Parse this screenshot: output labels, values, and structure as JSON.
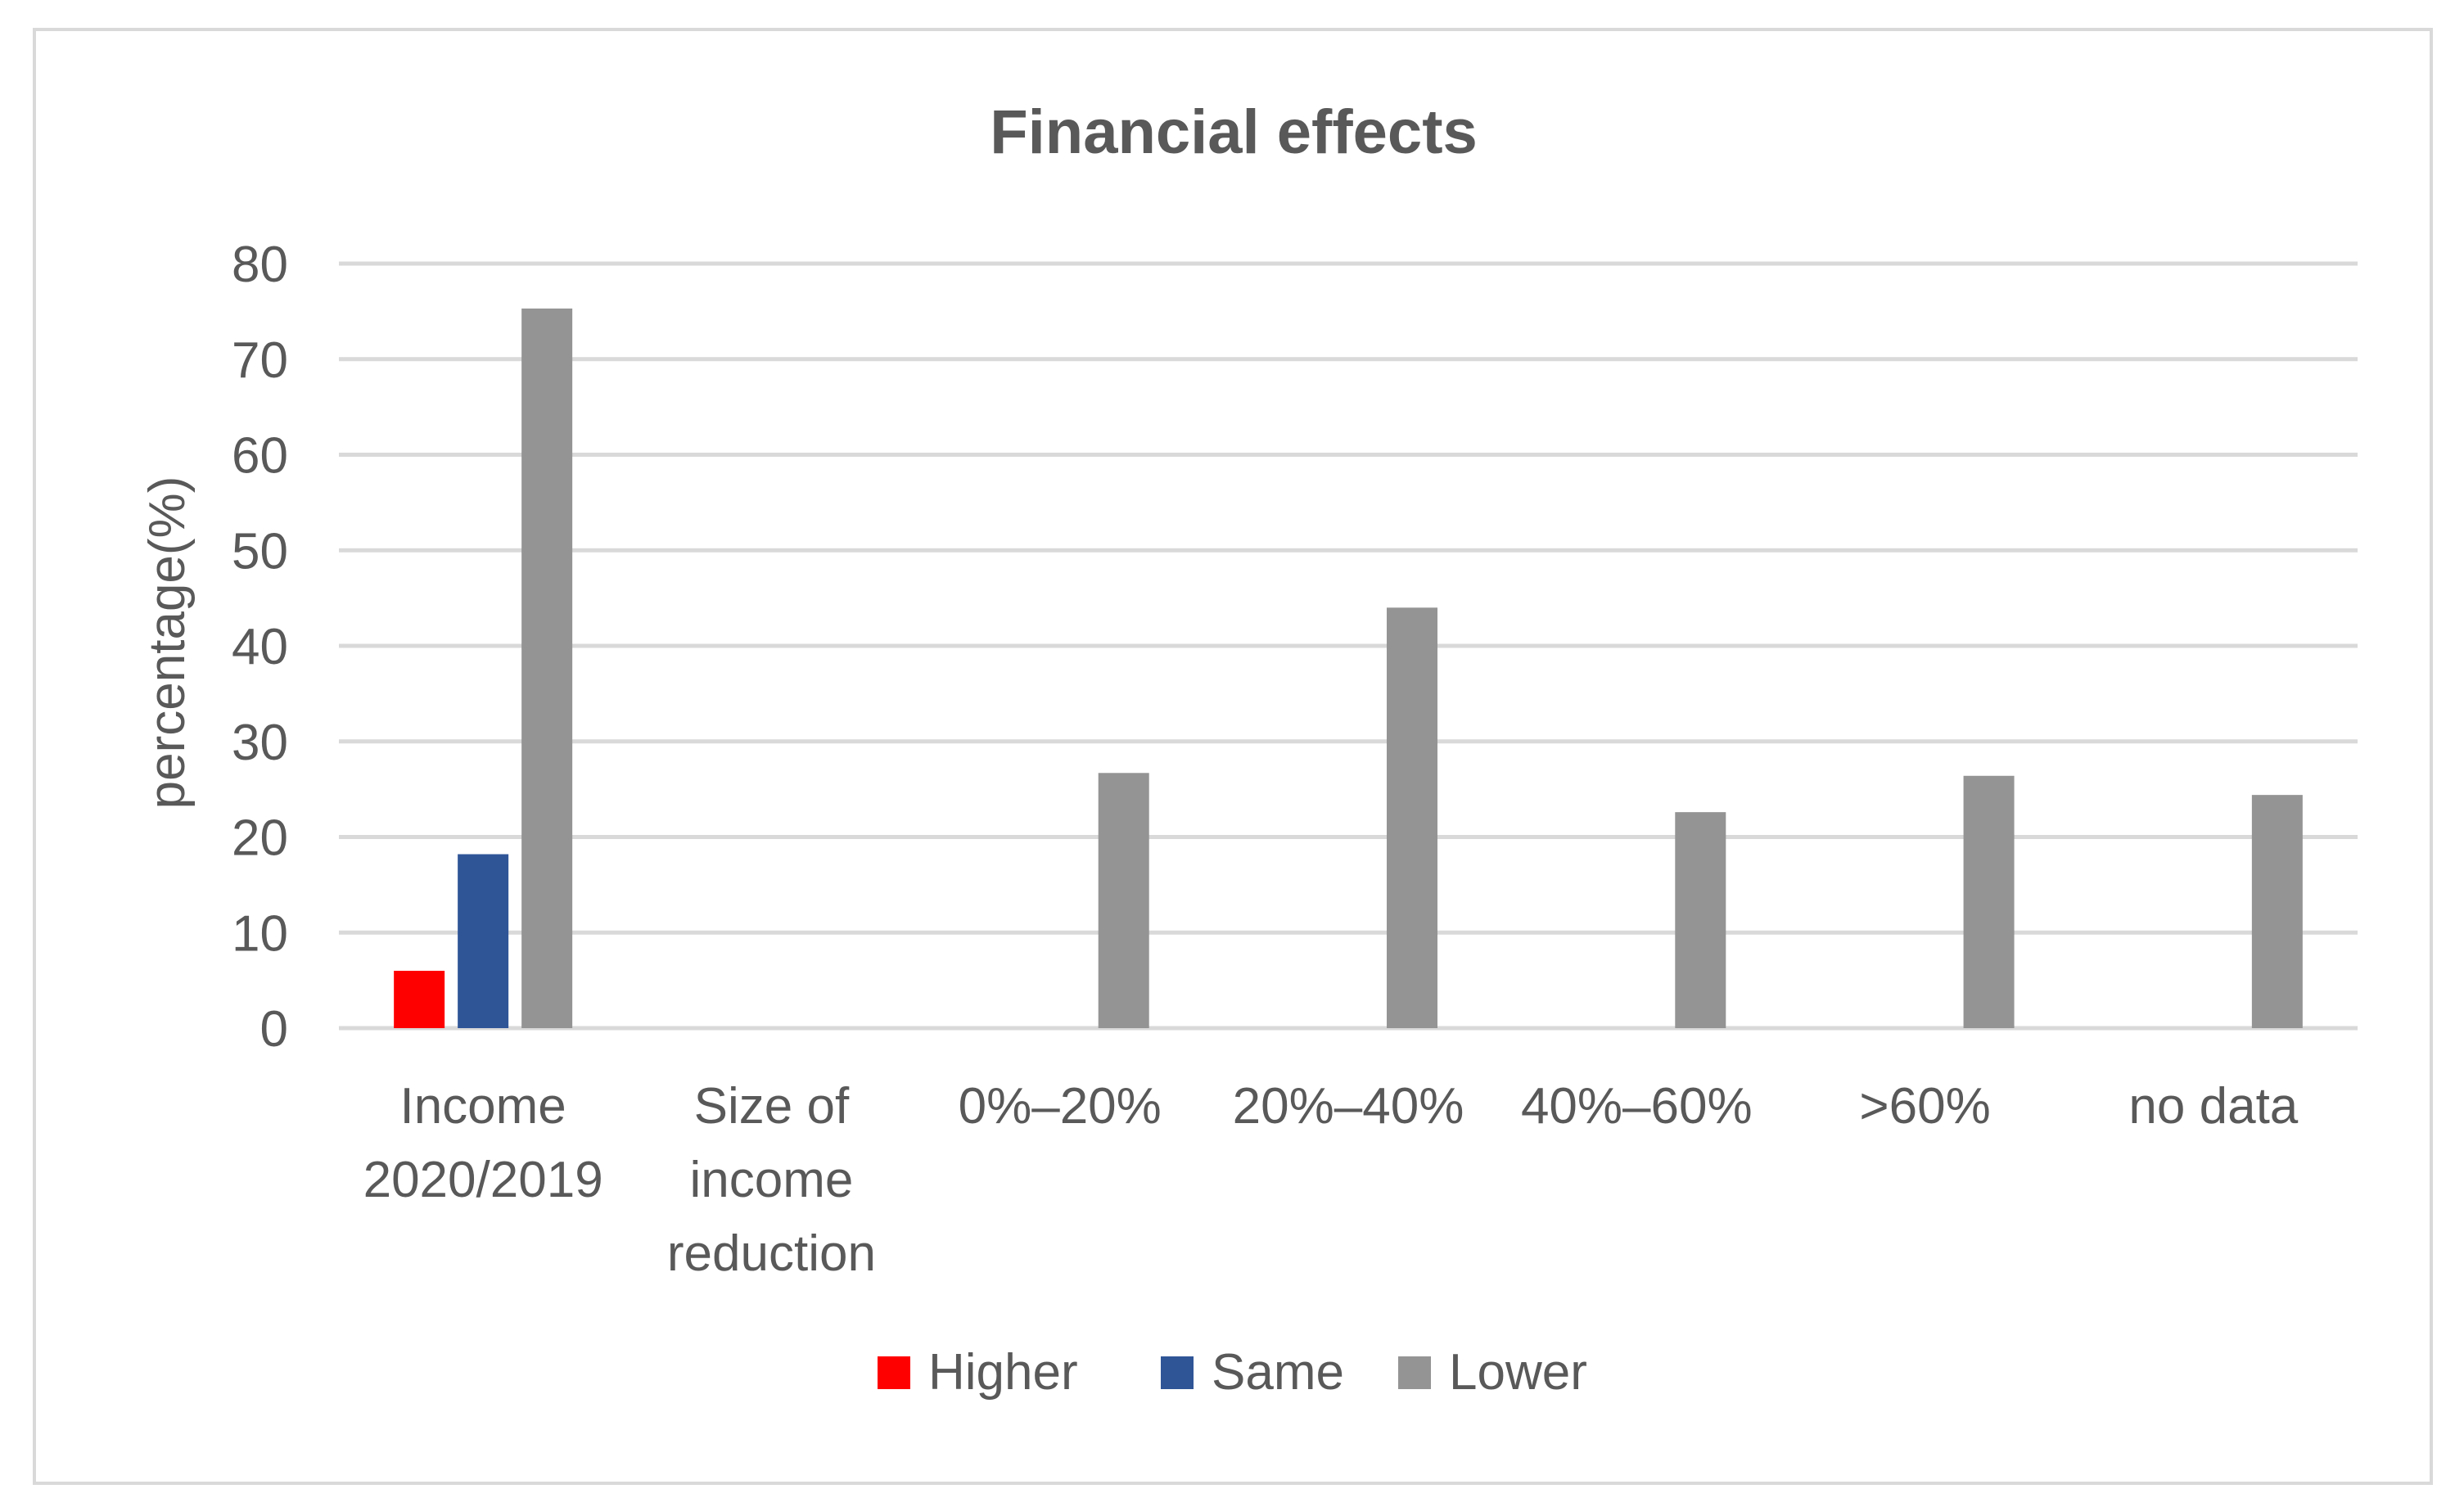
{
  "chart_data": {
    "type": "bar",
    "title": "Financial effects",
    "xlabel": "",
    "ylabel": "percentage(%)",
    "ylim": [
      0,
      80
    ],
    "ytick_step": 10,
    "grid": true,
    "legend_position": "bottom",
    "categories": [
      [
        "Income",
        "2020/2019"
      ],
      [
        "Size of",
        "income",
        "reduction"
      ],
      [
        "0%–20%"
      ],
      [
        "20%–40%"
      ],
      [
        "40%–60%"
      ],
      [
        ">60%"
      ],
      [
        "no data"
      ]
    ],
    "series": [
      {
        "name": "Higher",
        "color": "#ff0000",
        "values": [
          6,
          null,
          null,
          null,
          null,
          null,
          null
        ]
      },
      {
        "name": "Same",
        "color": "#2f5597",
        "values": [
          18.2,
          null,
          null,
          null,
          null,
          null,
          null
        ]
      },
      {
        "name": "Lower",
        "color": "#949494",
        "values": [
          75.3,
          null,
          26.7,
          44,
          22.6,
          26.4,
          24.4
        ]
      }
    ]
  }
}
